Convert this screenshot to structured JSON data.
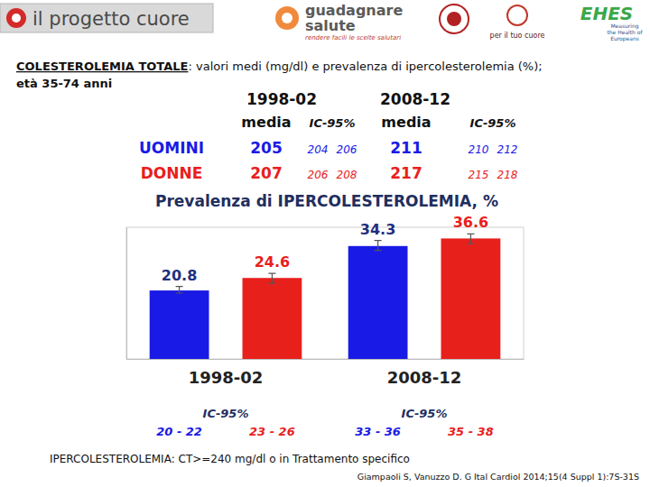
{
  "header": {
    "brand": "il progetto cuore",
    "guadagnare": [
      "guadagnare",
      "salute"
    ],
    "slogan": "rendere facili le scelte salutari",
    "cuore": "per il tuo cuore",
    "ehes": "EHES",
    "ehes_caption": [
      "Measuring",
      "the Health of",
      "Europeans"
    ]
  },
  "title": {
    "main": "COLESTEROLEMIA TOTALE",
    "rest": ": valori medi (mg/dl) e prevalenza di ipercolesterolemia (%);",
    "line2": "età 35-74 anni"
  },
  "table": {
    "periods": [
      "1998-02",
      "2008-12"
    ],
    "columns": [
      "media",
      "IC-95%"
    ],
    "rows": [
      [
        [
          205,
          [
            204,
            206
          ]
        ],
        [
          211,
          [
            210,
            212
          ]
        ]
      ],
      [
        [
          207,
          [
            206,
            208
          ]
        ],
        [
          217,
          [
            215,
            218
          ]
        ]
      ]
    ]
  },
  "chart_data": {
    "type": "bar",
    "title": "Prevalenza di IPERCOLESTEROLEMIA, %",
    "categories": [
      "1998-02",
      "2008-12"
    ],
    "series": [
      {
        "name": "UOMINI",
        "color": "#1a1ae6",
        "values": [
          20.8,
          34.3
        ],
        "ci": [
          [
            20,
            22
          ],
          [
            33,
            36
          ]
        ],
        "ci_labels": [
          "20 - 22",
          "33 - 36"
        ]
      },
      {
        "name": "DONNE",
        "color": "#e8201c",
        "values": [
          24.6,
          36.6
        ],
        "ci": [
          [
            23,
            26
          ],
          [
            35,
            38
          ]
        ],
        "ci_labels": [
          "23 - 26",
          "35 - 38"
        ]
      }
    ],
    "ci_title": "IC-95%",
    "ylim": [
      0,
      40
    ],
    "data_labels": true,
    "tick_labels": "x"
  },
  "footnote": "IPERCOLESTEROLEMIA: CT>=240 mg/dl o in Trattamento specifico",
  "source": "Giampaoli S, Vanuzzo D. G Ital Cardiol 2014;15(4 Suppl 1):7S-31S"
}
